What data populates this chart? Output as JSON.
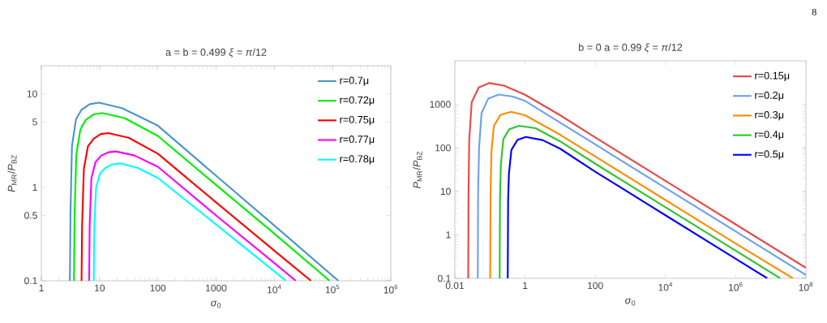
{
  "chart_data": [
    {
      "type": "line",
      "title": "a = b = 0.499     *ξ* = *π*/12",
      "xlabel": "*σ*$_{0}$",
      "ylabel": "*P*$_{MR}$/*P*$_{BZ}$",
      "log": "xy",
      "legend": "top right",
      "xlim": [
        1,
        1000000
      ],
      "ylim": [
        0.1,
        20
      ],
      "xticks": [
        1,
        10,
        100,
        1000,
        {
          "value": 10000,
          "label": "10$^{4}$"
        },
        {
          "value": 100000,
          "label": "10$^{5}$"
        },
        {
          "value": 1000000,
          "label": "10$^{6}$"
        }
      ],
      "yticks": [
        0.1,
        0.5,
        1,
        5,
        10
      ],
      "series": [
        {
          "name": "r=0.7μ",
          "color": "#4b96cc",
          "x": [
            3.09,
            3.16,
            3.35,
            3.94,
            4.9,
            6.76,
            9.77,
            24.3,
            100,
            1000,
            10000,
            125900
          ],
          "values": [
            0.1,
            0.5,
            2.75,
            5.37,
            6.76,
            7.76,
            8.04,
            7.03,
            4.57,
            1.33,
            0.39,
            0.1
          ]
        },
        {
          "name": "r=0.72μ",
          "color": "#00ee00",
          "x": [
            3.63,
            3.72,
            3.98,
            4.68,
            5.75,
            7.94,
            11,
            26.9,
            100,
            1000,
            10000,
            89100
          ],
          "values": [
            0.1,
            0.5,
            2.24,
            4.17,
            5.25,
            6.03,
            6.24,
            5.5,
            3.55,
            1.06,
            0.32,
            0.1
          ]
        },
        {
          "name": "r=0.75μ",
          "color": "#ff0000",
          "x": [
            4.9,
            5.01,
            5.37,
            6.31,
            7.94,
            10.5,
            14.1,
            31.6,
            100,
            1000,
            10000,
            42700
          ],
          "values": [
            0.1,
            0.4,
            1.58,
            2.75,
            3.31,
            3.72,
            3.8,
            3.39,
            2.29,
            0.69,
            0.21,
            0.1
          ]
        },
        {
          "name": "r=0.77μ",
          "color": "#ff00ff",
          "x": [
            6.61,
            6.76,
            7.24,
            8.51,
            10.7,
            14.1,
            19.1,
            39.8,
            100,
            1000,
            10000,
            23400
          ],
          "values": [
            0.1,
            0.4,
            1.26,
            1.86,
            2.19,
            2.37,
            2.42,
            2.19,
            1.66,
            0.5,
            0.155,
            0.1
          ]
        },
        {
          "name": "r=0.78μ",
          "color": "#00ffff",
          "x": [
            7.94,
            8.13,
            8.71,
            10.2,
            12.6,
            16.6,
            22.9,
            44.7,
            100,
            1000,
            10000,
            15800
          ],
          "values": [
            0.1,
            0.4,
            1,
            1.41,
            1.62,
            1.76,
            1.8,
            1.62,
            1.26,
            0.4,
            0.126,
            0.1
          ]
        }
      ]
    },
    {
      "type": "line",
      "title": "b = 0     a = 0.99     *ξ* = *π*/12",
      "xlabel": "*σ*$_{0}$",
      "ylabel": "*P*$_{MR}$/*P*$_{BZ}$",
      "log": "xy",
      "legend": "top right",
      "xlim": [
        0.01,
        100000000
      ],
      "ylim": [
        0.1,
        10000
      ],
      "xticks": [
        0.01,
        1,
        100,
        {
          "value": 10000,
          "label": "10$^{4}$"
        },
        {
          "value": 1000000,
          "label": "10$^{6}$"
        },
        {
          "value": 100000000,
          "label": "10$^{8}$"
        }
      ],
      "yticks": [
        0.1,
        1,
        10,
        100,
        1000
      ],
      "annotations": [
        "8"
      ],
      "series": [
        {
          "name": "r=0.15μ",
          "color": "#e84848",
          "x": [
            0.024,
            0.0245,
            0.0257,
            0.0302,
            0.0479,
            0.0964,
            0.251,
            1,
            10,
            100,
            10000,
            1000000,
            100000000
          ],
          "values": [
            0.1,
            10,
            151,
            1120,
            2450,
            3090,
            2690,
            1660,
            562,
            174,
            17.4,
            1.74,
            0.174
          ]
        },
        {
          "name": "r=0.2μ",
          "color": "#6ea0f0",
          "x": [
            0.045,
            0.046,
            0.049,
            0.0575,
            0.0891,
            0.179,
            0.447,
            1,
            10,
            100,
            10000,
            1000000,
            100000000
          ],
          "values": [
            0.1,
            10,
            100,
            631,
            1350,
            1680,
            1510,
            1200,
            380,
            120,
            12,
            1.2,
            0.12
          ]
        },
        {
          "name": "r=0.3μ",
          "color": "#ff8c00",
          "x": [
            0.1016,
            0.104,
            0.11,
            0.129,
            0.2,
            0.398,
            1,
            10,
            100,
            10000,
            1000000,
            42700000
          ],
          "values": [
            0.1,
            10,
            79.4,
            316,
            575,
            676,
            562,
            200,
            63.1,
            6.31,
            0.631,
            0.1
          ]
        },
        {
          "name": "r=0.4μ",
          "color": "#2cc52c",
          "x": [
            0.189,
            0.193,
            0.204,
            0.24,
            0.355,
            0.676,
            2,
            10,
            100,
            10000,
            1000000,
            18600000
          ],
          "values": [
            0.1,
            6.31,
            39.8,
            158,
            269,
            321,
            282,
            141,
            43.2,
            4.32,
            0.432,
            0.1
          ]
        },
        {
          "name": "r=0.5μ",
          "color": "#0000ff",
          "x": [
            0.321,
            0.329,
            0.347,
            0.407,
            0.603,
            1.05,
            3.16,
            10,
            100,
            10000,
            1000000,
            7940000
          ],
          "values": [
            0.1,
            6.31,
            25.1,
            89.1,
            151,
            178,
            151,
            95.5,
            28.2,
            2.82,
            0.282,
            0.1
          ]
        }
      ]
    }
  ]
}
